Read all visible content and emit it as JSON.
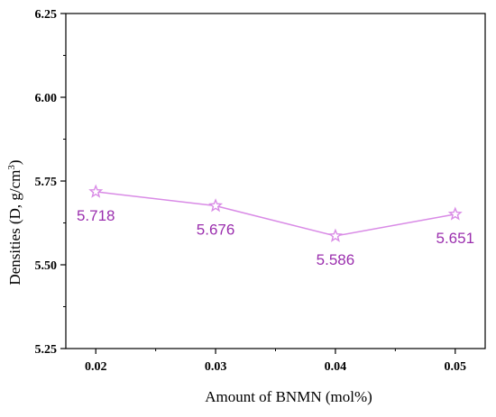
{
  "chart_data": {
    "type": "line",
    "x": [
      0.02,
      0.03,
      0.04,
      0.05
    ],
    "x_tick_labels": [
      "0.02",
      "0.03",
      "0.04",
      "0.05"
    ],
    "series": [
      {
        "values": [
          5.718,
          5.676,
          5.586,
          5.651
        ],
        "labels": [
          "5.718",
          "5.676",
          "5.586",
          "5.651"
        ],
        "marker": "star-open",
        "color": "#d98be6",
        "label_color": "#9b2fae"
      }
    ],
    "xlabel": "Amount of BNMN (mol%)",
    "ylabel": {
      "main": "Densities (D, g/cm",
      "superscript": "3",
      "close": ")"
    },
    "y_ticks": [
      5.25,
      5.5,
      5.75,
      6.0,
      6.25
    ],
    "y_tick_labels": [
      "5.25",
      "5.50",
      "5.75",
      "6.00",
      "6.25"
    ],
    "xlim": [
      0.0175,
      0.0525
    ],
    "ylim": [
      5.25,
      6.25
    ],
    "grid": false
  }
}
